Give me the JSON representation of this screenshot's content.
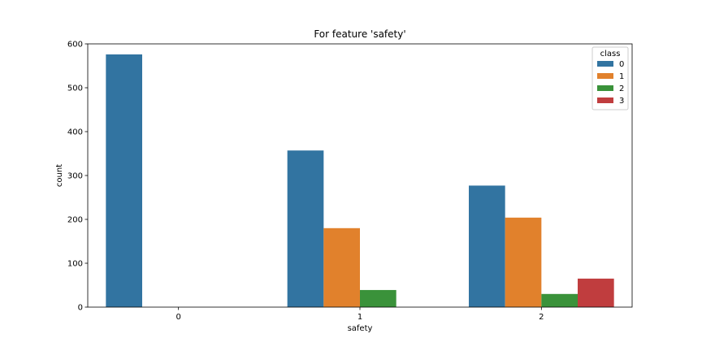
{
  "chart_data": {
    "type": "bar",
    "title": "For feature 'safety'",
    "xlabel": "safety",
    "ylabel": "count",
    "categories": [
      "0",
      "1",
      "2"
    ],
    "ylim": [
      0,
      600
    ],
    "yticks": [
      0,
      100,
      200,
      300,
      400,
      500,
      600
    ],
    "grid": false,
    "legend": {
      "title": "class",
      "position": "top-right"
    },
    "series": [
      {
        "name": "0",
        "color": "#3274a1",
        "values": [
          576,
          357,
          277
        ]
      },
      {
        "name": "1",
        "color": "#e1812c",
        "values": [
          0,
          180,
          204
        ]
      },
      {
        "name": "2",
        "color": "#3a923a",
        "values": [
          0,
          39,
          30
        ]
      },
      {
        "name": "3",
        "color": "#c03d3e",
        "values": [
          0,
          0,
          65
        ]
      }
    ]
  }
}
